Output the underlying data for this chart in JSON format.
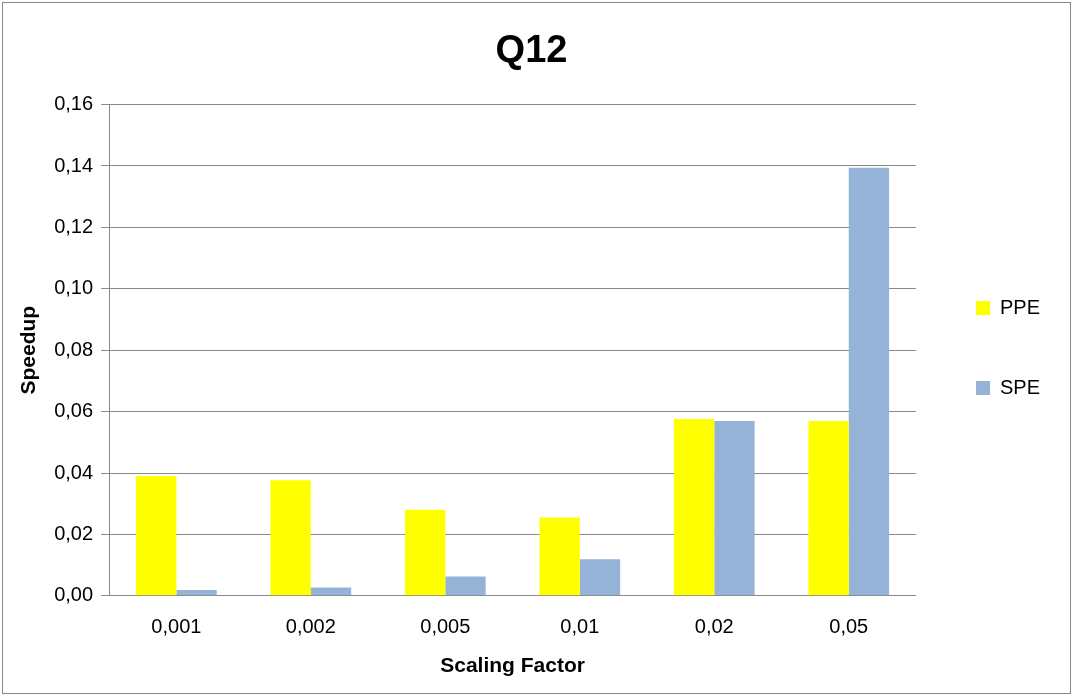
{
  "chart_data": {
    "type": "bar",
    "title": "Q12",
    "xlabel": "Scaling Factor",
    "ylabel": "Speedup",
    "categories": [
      "0,001",
      "0,002",
      "0,005",
      "0,01",
      "0,02",
      "0,05"
    ],
    "series": [
      {
        "name": "PPE",
        "color": "#ffff00",
        "values": [
          0.039,
          0.0376,
          0.028,
          0.0255,
          0.0576,
          0.0569
        ]
      },
      {
        "name": "SPE",
        "color": "#95b3d7",
        "values": [
          0.0019,
          0.0027,
          0.0063,
          0.0119,
          0.0569,
          0.1394
        ]
      }
    ],
    "ylim": [
      0,
      0.16
    ],
    "yticks": [
      {
        "value": 0,
        "label": "0,00"
      },
      {
        "value": 0.02,
        "label": "0,02"
      },
      {
        "value": 0.04,
        "label": "0,04"
      },
      {
        "value": 0.06,
        "label": "0,06"
      },
      {
        "value": 0.08,
        "label": "0,08"
      },
      {
        "value": 0.1,
        "label": "0,10"
      },
      {
        "value": 0.12,
        "label": "0,12"
      },
      {
        "value": 0.14,
        "label": "0,14"
      },
      {
        "value": 0.16,
        "label": "0,16"
      }
    ],
    "grid": "y",
    "legend": "right"
  }
}
